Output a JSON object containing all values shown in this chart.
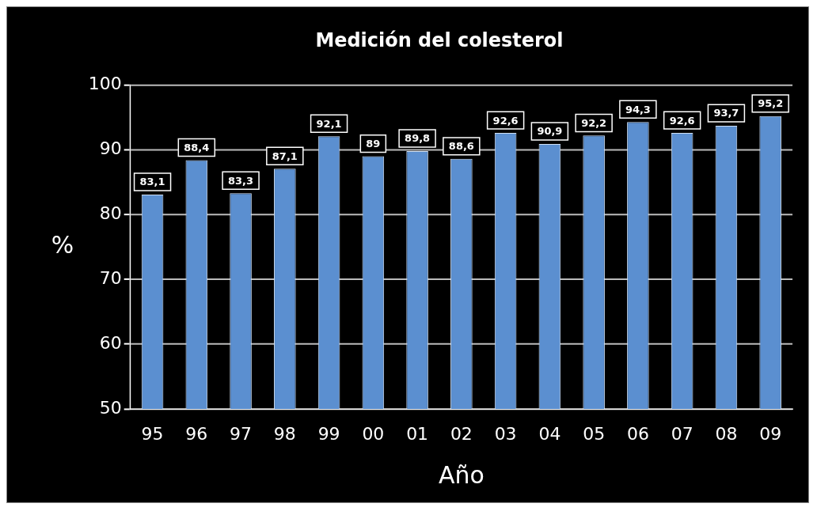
{
  "chart_data": {
    "type": "bar",
    "title": "Medición del colesterol",
    "xlabel": "Año",
    "ylabel": "%",
    "categories": [
      "95",
      "96",
      "97",
      "98",
      "99",
      "00",
      "01",
      "02",
      "03",
      "04",
      "05",
      "06",
      "07",
      "08",
      "09"
    ],
    "values": [
      83.1,
      88.4,
      83.3,
      87.1,
      92.1,
      89,
      89.8,
      88.6,
      92.6,
      90.9,
      92.2,
      94.3,
      92.6,
      93.7,
      95.2
    ],
    "value_labels": [
      "83,1",
      "88,4",
      "83,3",
      "87,1",
      "92,1",
      "89",
      "89,8",
      "88,6",
      "92,6",
      "90,9",
      "92,2",
      "94,3",
      "92,6",
      "93,7",
      "95,2"
    ],
    "color": "#5b8fd0",
    "ylim": [
      50,
      100
    ],
    "yticks": [
      50,
      60,
      70,
      80,
      90,
      100
    ],
    "grid": "y",
    "legend": false
  }
}
